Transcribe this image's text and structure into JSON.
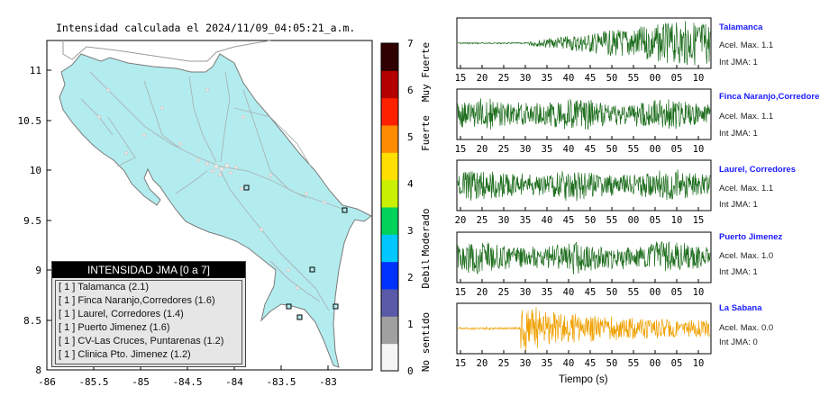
{
  "map": {
    "title": "Intensidad calculada el 2024/11/09_04:05:21_a.m.",
    "x_ticks": [
      "-86",
      "-85.5",
      "-85",
      "-84.5",
      "-84",
      "-83.5",
      "-83"
    ],
    "y_ticks": [
      "11",
      "10.5",
      "10",
      "9.5",
      "9",
      "8.5",
      "8"
    ],
    "land_color": "#b3ecee",
    "background_color": "#ffffff"
  },
  "colorbar": {
    "ticks": [
      "7",
      "6",
      "5",
      "4",
      "3",
      "2",
      "1",
      "0"
    ],
    "category_labels": [
      "Muy Fuerte",
      "Fuerte",
      "Moderado",
      "Debil",
      "No sentido"
    ],
    "colors": [
      "#f5f5f5",
      "#a0a0a0",
      "#5a5aa8",
      "#0032ff",
      "#00c8ff",
      "#00d25a",
      "#c8f000",
      "#ffe000",
      "#ff8c00",
      "#ff2000",
      "#b40000",
      "#300000"
    ]
  },
  "legend": {
    "title": "INTENSIDAD JMA [0 a 7]",
    "items": [
      "[ 1 ]  Talamanca (2.1)",
      "[ 1 ]  Finca Naranjo,Corredores (1.6)",
      "[ 1 ]  Laurel, Corredores (1.4)",
      "[ 1 ]  Puerto Jimenez (1.6)",
      "[ 1 ]  CV-Las Cruces, Puntarenas (1.2)",
      "[ 1 ]  Clinica Pto. Jimenez (1.2)"
    ]
  },
  "waveforms": {
    "x_axis_label": "Tiempo (s)",
    "panels": [
      {
        "name": "Talamanca",
        "acel": "Acel. Max. 1.1",
        "jma": "Int JMA: 1",
        "color": "#1e6e1e",
        "ticks": [
          "15",
          "20",
          "25",
          "30",
          "35",
          "40",
          "45",
          "50",
          "55",
          "00",
          "05",
          "10"
        ]
      },
      {
        "name": "Finca Naranjo,Corredores",
        "acel": "Acel. Max. 1.1",
        "jma": "Int JMA: 1",
        "color": "#1e6e1e",
        "ticks": [
          "15",
          "20",
          "25",
          "30",
          "35",
          "40",
          "45",
          "50",
          "55",
          "00",
          "05",
          "10"
        ]
      },
      {
        "name": "Laurel, Corredores",
        "acel": "Acel. Max. 1.1",
        "jma": "Int JMA: 1",
        "color": "#1e6e1e",
        "ticks": [
          "20",
          "25",
          "30",
          "35",
          "40",
          "45",
          "50",
          "55",
          "00",
          "05",
          "10",
          "15"
        ]
      },
      {
        "name": "Puerto Jimenez",
        "acel": "Acel. Max. 1.0",
        "jma": "Int JMA: 1",
        "color": "#1e6e1e",
        "ticks": [
          "15",
          "20",
          "25",
          "30",
          "35",
          "40",
          "45",
          "50",
          "55",
          "00",
          "05",
          "10"
        ]
      },
      {
        "name": "La Sabana",
        "acel": "Acel. Max. 0.0",
        "jma": "Int JMA: 0",
        "color": "#f0a000",
        "ticks": [
          "15",
          "20",
          "25",
          "30",
          "35",
          "40",
          "45",
          "50",
          "55",
          "00",
          "05",
          "10"
        ]
      }
    ]
  }
}
